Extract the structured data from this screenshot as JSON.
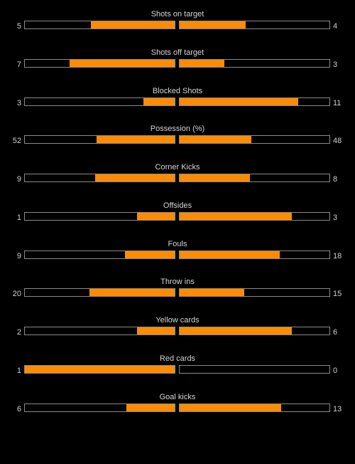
{
  "colors": {
    "background": "#000000",
    "bar_fill": "#ff8c00",
    "bar_border": "#8a8a8a",
    "text": "#cfcfcf"
  },
  "stats": [
    {
      "label": "Shots on target",
      "home": "5",
      "away": "4",
      "home_fill": 0.56,
      "away_fill": 0.44
    },
    {
      "label": "Shots off target",
      "home": "7",
      "away": "3",
      "home_fill": 0.7,
      "away_fill": 0.3
    },
    {
      "label": "Blocked Shots",
      "home": "3",
      "away": "11",
      "home_fill": 0.21,
      "away_fill": 0.79
    },
    {
      "label": "Possession (%)",
      "home": "52",
      "away": "48",
      "home_fill": 0.52,
      "away_fill": 0.48
    },
    {
      "label": "Corner Kicks",
      "home": "9",
      "away": "8",
      "home_fill": 0.53,
      "away_fill": 0.47
    },
    {
      "label": "Offsides",
      "home": "1",
      "away": "3",
      "home_fill": 0.25,
      "away_fill": 0.75
    },
    {
      "label": "Fouls",
      "home": "9",
      "away": "18",
      "home_fill": 0.33,
      "away_fill": 0.67
    },
    {
      "label": "Throw ins",
      "home": "20",
      "away": "15",
      "home_fill": 0.57,
      "away_fill": 0.43
    },
    {
      "label": "Yellow cards",
      "home": "2",
      "away": "6",
      "home_fill": 0.25,
      "away_fill": 0.75
    },
    {
      "label": "Red cards",
      "home": "1",
      "away": "0",
      "home_fill": 1.0,
      "away_fill": 0.0
    },
    {
      "label": "Goal kicks",
      "home": "6",
      "away": "13",
      "home_fill": 0.32,
      "away_fill": 0.68
    }
  ]
}
